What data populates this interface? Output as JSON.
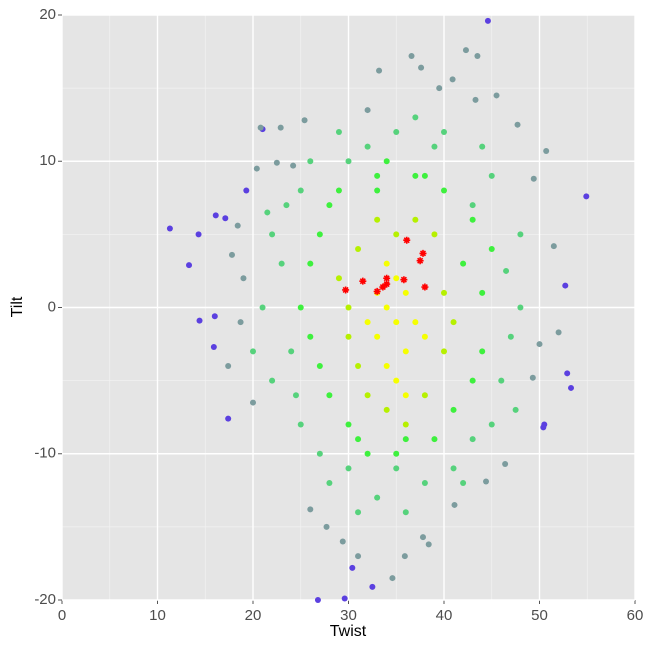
{
  "chart_data": {
    "type": "scatter",
    "x_label": "Twist",
    "y_label": "Tilt",
    "xlim": [
      0,
      60
    ],
    "ylim": [
      -20,
      20
    ],
    "xticks": [
      0,
      10,
      20,
      30,
      40,
      50,
      60
    ],
    "yticks": [
      -20,
      -10,
      0,
      10,
      20
    ],
    "grid": true,
    "series": [
      {
        "color": "#5b40e0",
        "marker": "circle",
        "x": [
          44.6,
          54.9,
          11.3,
          13.3,
          14.3,
          14.4,
          26.8,
          29.6,
          30.4,
          32.5,
          52.9,
          52.7,
          50.4,
          53.3,
          16.0,
          15.9,
          17.4,
          16.1,
          17.1,
          19.3,
          50.5,
          21.0
        ],
        "y": [
          19.6,
          7.6,
          5.4,
          2.9,
          5.0,
          -0.9,
          -20.0,
          -19.9,
          -17.8,
          -19.1,
          -4.5,
          1.5,
          -8.2,
          -5.5,
          -0.6,
          -2.7,
          -7.6,
          6.3,
          6.1,
          8.0,
          -8.0,
          12.2
        ]
      },
      {
        "color": "#7c9c9e",
        "marker": "circle",
        "x": [
          36.6,
          42.3,
          43.5,
          40.9,
          43.3,
          33.2,
          37.6,
          25.4,
          20.8,
          22.9,
          47.7,
          50.7,
          20.4,
          22.5,
          24.2,
          18.4,
          17.8,
          18.7,
          17.4,
          20.0,
          49.4,
          51.5,
          52.0,
          49.3,
          46.4,
          27.7,
          29.4,
          35.9,
          37.8,
          41.1,
          44.4,
          26.0,
          31.0,
          34.6,
          38.4,
          45.5,
          39.5,
          32.0,
          19.0,
          50.0
        ],
        "y": [
          17.2,
          17.6,
          17.2,
          15.6,
          14.2,
          16.2,
          16.4,
          12.8,
          12.3,
          12.3,
          12.5,
          10.7,
          9.5,
          9.9,
          9.7,
          5.6,
          3.6,
          -1.0,
          -4.0,
          -6.5,
          8.8,
          4.2,
          -1.7,
          -4.8,
          -10.7,
          -15.0,
          -16.0,
          -17.0,
          -15.7,
          -13.5,
          -11.9,
          -13.8,
          -17.0,
          -18.5,
          -16.2,
          14.5,
          15.0,
          13.5,
          2.0,
          -2.5
        ]
      },
      {
        "color": "#56d27c",
        "marker": "circle",
        "x": [
          30,
          25,
          22,
          21,
          22,
          25,
          30,
          35,
          40,
          45,
          48,
          48,
          46,
          43,
          38,
          33,
          28,
          23,
          47,
          44,
          32,
          27,
          24,
          41,
          36,
          26,
          43,
          20,
          21.5,
          46.5,
          35,
          39,
          29,
          23.5,
          47.5,
          42,
          31,
          37,
          24.5,
          45
        ],
        "y": [
          -11,
          -8,
          -5,
          0,
          5,
          8,
          10,
          12,
          12,
          9,
          5,
          0,
          -5,
          -9,
          -12,
          -13,
          -12,
          3,
          -2,
          11,
          11,
          -10,
          -3,
          -11,
          -14,
          10,
          7,
          -3,
          6.5,
          2.5,
          -11,
          11,
          12,
          7,
          -7,
          -12,
          -14,
          13,
          -6,
          -8
        ]
      },
      {
        "color": "#3ef03e",
        "marker": "circle",
        "x": [
          28,
          26,
          26,
          28,
          33,
          38,
          43,
          44,
          44,
          41,
          36,
          31,
          27,
          30,
          42,
          39,
          34,
          29,
          25,
          45,
          37,
          32,
          40,
          35,
          27,
          43,
          33
        ],
        "y": [
          -6,
          -2,
          3,
          7,
          8,
          9,
          6,
          1,
          -3,
          -7,
          -9,
          -9,
          5,
          -8,
          3,
          -9,
          10,
          8,
          0,
          4,
          9,
          -10,
          8,
          -10,
          -4,
          -5,
          9
        ]
      },
      {
        "color": "#b6f000",
        "marker": "circle",
        "x": [
          31,
          30,
          31,
          35,
          39,
          40,
          40,
          38,
          34,
          32,
          37,
          29,
          41,
          30,
          36,
          33
        ],
        "y": [
          -4,
          0,
          4,
          5,
          5,
          1,
          -3,
          -6,
          -7,
          -6,
          6,
          2,
          -1,
          -2,
          -8,
          6
        ]
      },
      {
        "color": "#f5ff00",
        "marker": "circle",
        "x": [
          33,
          34,
          35,
          36,
          34,
          36,
          33,
          35,
          37,
          35,
          32,
          38,
          34,
          36
        ],
        "y": [
          -2,
          0,
          -1,
          -3,
          -4,
          1,
          1,
          2,
          -1,
          -5,
          -1,
          -2,
          3,
          -6
        ]
      },
      {
        "color": "#ff0000",
        "marker": "star",
        "x": [
          29.7,
          31.5,
          33.0,
          33.6,
          34.0,
          34.0,
          35.8,
          36.1,
          37.5,
          37.8,
          38.0
        ],
        "y": [
          1.2,
          1.8,
          1.1,
          1.4,
          1.6,
          2.0,
          1.9,
          4.6,
          3.2,
          3.7,
          1.4
        ]
      }
    ]
  }
}
